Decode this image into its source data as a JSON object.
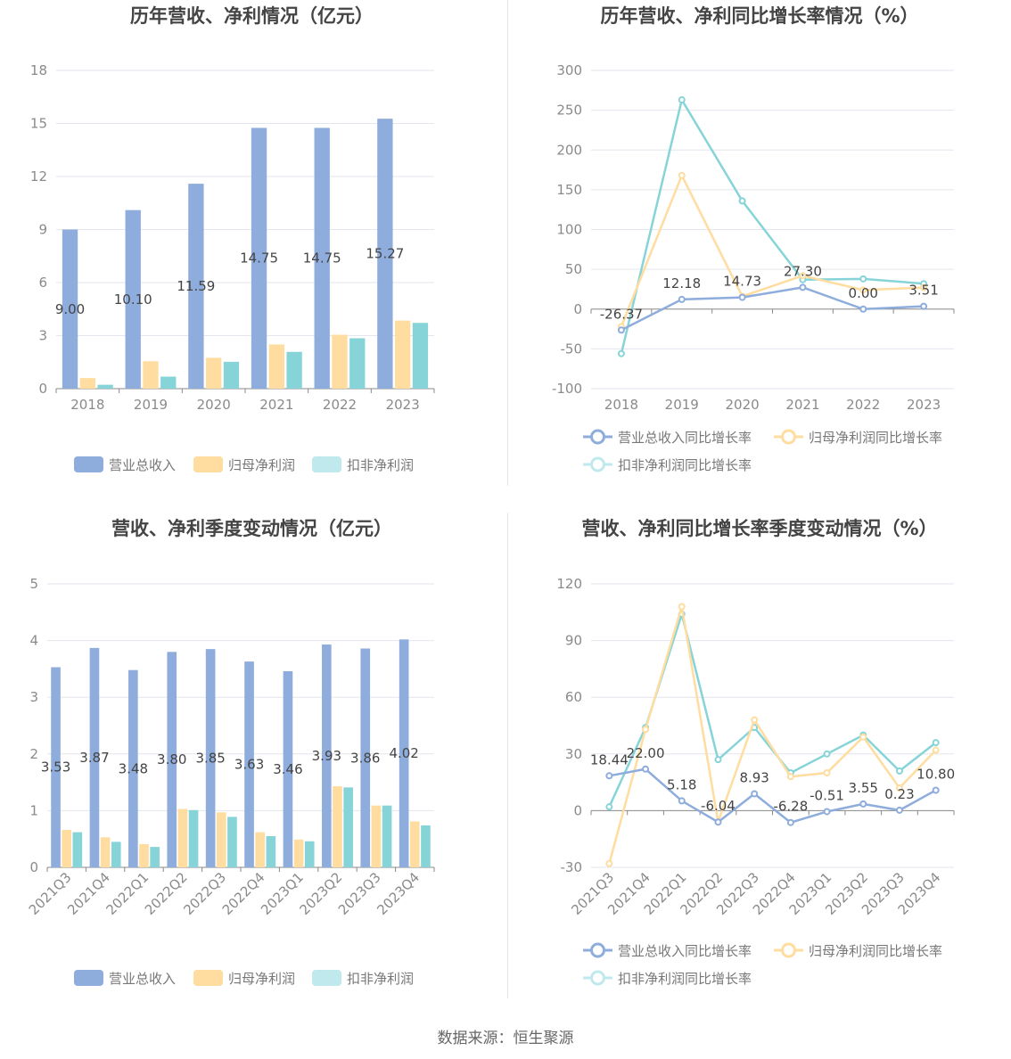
{
  "source": "数据来源：恒生聚源",
  "colors": {
    "revenue": "#8eacdc",
    "net_profit": "#ffdc9f",
    "deducted": "#86d4d8",
    "deducted_legend": "#bfe9ec"
  },
  "chart_data": [
    {
      "id": "annual-amount",
      "type": "bar",
      "title": "历年营收、净利情况（亿元）",
      "categories": [
        "2018",
        "2019",
        "2020",
        "2021",
        "2022",
        "2023"
      ],
      "ylim": [
        0,
        18
      ],
      "yticks": [
        "0",
        "3",
        "6",
        "9",
        "12",
        "15",
        "18"
      ],
      "series": [
        {
          "name": "营业总收入",
          "values": [
            9.0,
            10.1,
            11.59,
            14.75,
            14.75,
            15.27
          ],
          "labels": [
            "9.00",
            "10.10",
            "11.59",
            "14.75",
            "14.75",
            "15.27"
          ]
        },
        {
          "name": "归母净利润",
          "values": [
            0.6,
            1.55,
            1.75,
            2.5,
            3.05,
            3.85
          ]
        },
        {
          "name": "扣非净利润",
          "values": [
            0.22,
            0.68,
            1.52,
            2.08,
            2.85,
            3.72
          ]
        }
      ],
      "legend": "bottom"
    },
    {
      "id": "annual-growth",
      "type": "line",
      "title": "历年营收、净利同比增长率情况（%）",
      "categories": [
        "2018",
        "2019",
        "2020",
        "2021",
        "2022",
        "2023"
      ],
      "ylim": [
        -100,
        300
      ],
      "yticks": [
        "-100",
        "-50",
        "0",
        "50",
        "100",
        "150",
        "200",
        "250",
        "300"
      ],
      "series": [
        {
          "name": "营业总收入同比增长率",
          "values": [
            -26.37,
            12.18,
            14.73,
            27.3,
            0.0,
            3.51
          ],
          "labels": [
            "-26.37",
            "12.18",
            "14.73",
            "27.30",
            "0.00",
            "3.51"
          ]
        },
        {
          "name": "归母净利润同比增长率",
          "values": [
            -22,
            168,
            16,
            42,
            24,
            27
          ]
        },
        {
          "name": "扣非净利润同比增长率",
          "values": [
            -56,
            263,
            136,
            37,
            38,
            32
          ]
        }
      ],
      "legend": "bottom"
    },
    {
      "id": "quarterly-amount",
      "type": "bar",
      "title": "营收、净利季度变动情况（亿元）",
      "categories": [
        "2021Q3",
        "2021Q4",
        "2022Q1",
        "2022Q2",
        "2022Q3",
        "2022Q4",
        "2023Q1",
        "2023Q2",
        "2023Q3",
        "2023Q4"
      ],
      "ylim": [
        0,
        5
      ],
      "yticks": [
        "0",
        "1",
        "2",
        "3",
        "4",
        "5"
      ],
      "series": [
        {
          "name": "营业总收入",
          "values": [
            3.53,
            3.87,
            3.48,
            3.8,
            3.85,
            3.63,
            3.46,
            3.93,
            3.86,
            4.02
          ],
          "labels": [
            "3.53",
            "3.87",
            "3.48",
            "3.80",
            "3.85",
            "3.63",
            "3.46",
            "3.93",
            "3.86",
            "4.02"
          ]
        },
        {
          "name": "归母净利润",
          "values": [
            0.66,
            0.53,
            0.41,
            1.03,
            0.97,
            0.62,
            0.49,
            1.43,
            1.09,
            0.81
          ]
        },
        {
          "name": "扣非净利润",
          "values": [
            0.62,
            0.45,
            0.36,
            1.01,
            0.89,
            0.55,
            0.46,
            1.41,
            1.09,
            0.74
          ]
        }
      ],
      "legend": "bottom"
    },
    {
      "id": "quarterly-growth",
      "type": "line",
      "title": "营收、净利同比增长率季度变动情况（%）",
      "categories": [
        "2021Q3",
        "2021Q4",
        "2022Q1",
        "2022Q2",
        "2022Q3",
        "2022Q4",
        "2023Q1",
        "2023Q2",
        "2023Q3",
        "2023Q4"
      ],
      "ylim": [
        -30,
        120
      ],
      "yticks": [
        "-30",
        "0",
        "30",
        "60",
        "90",
        "120"
      ],
      "series": [
        {
          "name": "营业总收入同比增长率",
          "values": [
            18.44,
            22.0,
            5.18,
            -6.04,
            8.93,
            -6.28,
            -0.51,
            3.55,
            0.23,
            10.8
          ],
          "labels": [
            "18.44",
            "22.00",
            "5.18",
            "-6.04",
            "8.93",
            "-6.28",
            "-0.51",
            "3.55",
            "0.23",
            "10.80"
          ]
        },
        {
          "name": "归母净利润同比增长率",
          "values": [
            -28,
            43,
            108,
            -6,
            48,
            18,
            20,
            39,
            12,
            32
          ]
        },
        {
          "name": "扣非净利润同比增长率",
          "values": [
            2,
            44,
            104,
            27,
            44,
            20,
            30,
            40,
            21,
            36
          ]
        }
      ],
      "legend": "bottom"
    }
  ]
}
